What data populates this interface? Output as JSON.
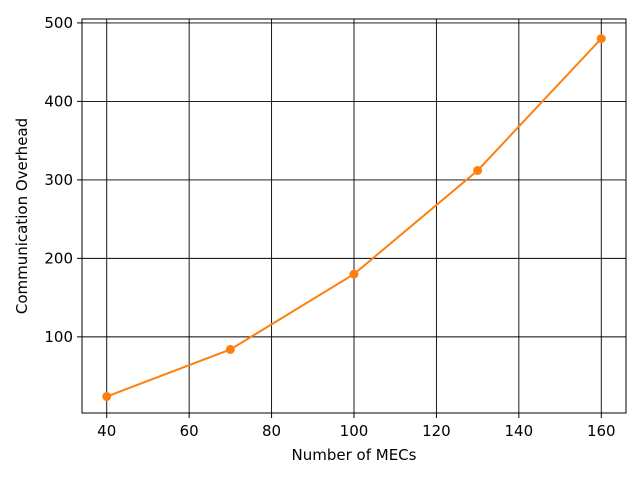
{
  "chart_data": {
    "type": "line",
    "title": "",
    "xlabel": "Number of MECs",
    "ylabel": "Communication Overhead",
    "xlim": [
      34,
      166
    ],
    "ylim": [
      3,
      505
    ],
    "xticks": [
      40,
      60,
      80,
      100,
      120,
      140,
      160
    ],
    "yticks": [
      100,
      200,
      300,
      400,
      500
    ],
    "grid": true,
    "series": [
      {
        "color": "#ff7f0e",
        "marker": "circle",
        "x": [
          40,
          70,
          100,
          130,
          160
        ],
        "y": [
          24,
          84,
          180,
          312,
          480
        ]
      }
    ]
  }
}
